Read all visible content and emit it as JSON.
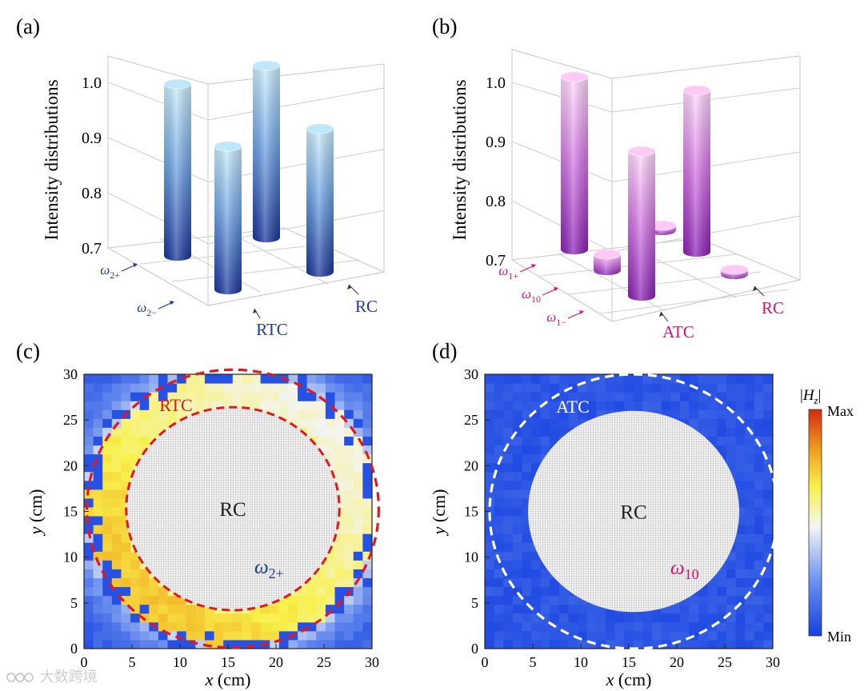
{
  "panels": {
    "a": {
      "label": "(a)"
    },
    "b": {
      "label": "(b)"
    },
    "c": {
      "label": "(c)"
    },
    "d": {
      "label": "(d)"
    }
  },
  "colorbar": {
    "title": "|H_z|",
    "max_label": "Max",
    "min_label": "Min",
    "colors": [
      "#1540e0",
      "#6f93ef",
      "#f4f4f4",
      "#f8f14a",
      "#f09a1c",
      "#d62a10"
    ]
  },
  "watermark": {
    "text": "大数跨境"
  },
  "colors": {
    "blue_top": "#cfeefc",
    "blue_bottom": "#18349a",
    "pink_top": "#ffd9fb",
    "pink_bottom": "#8a1fb5",
    "dash_red": "#dd1a22",
    "label_blue": "#223a90",
    "label_pink": "#d4146e"
  },
  "chart_data": [
    {
      "panel": "a",
      "type": "bar",
      "zlabel": "Intensity distributions",
      "zlim": [
        0.7,
        1.0
      ],
      "zticks": [
        "0.7",
        "0.8",
        "0.9",
        "1.0"
      ],
      "rows": [
        "ω2+",
        "ω2−"
      ],
      "columns": [
        "RTC",
        "RC"
      ],
      "color_scheme": "blue",
      "bars": [
        {
          "row": "ω2+",
          "column": "RTC",
          "value": 1.0
        },
        {
          "row": "ω2+",
          "column": "RC",
          "value": 1.0
        },
        {
          "row": "ω2−",
          "column": "RTC",
          "value": 0.95
        },
        {
          "row": "ω2−",
          "column": "RC",
          "value": 0.95
        }
      ],
      "axis_annotations": {
        "row_labels": [
          {
            "main": "ω",
            "sub": "2+"
          },
          {
            "main": "ω",
            "sub": "2−"
          }
        ],
        "column_labels": [
          "RTC",
          "RC"
        ]
      }
    },
    {
      "panel": "b",
      "type": "bar",
      "zlabel": "Intensity distributions",
      "zlim": [
        0.7,
        1.0
      ],
      "zticks": [
        "0.7",
        "0.8",
        "0.9",
        "1.0"
      ],
      "rows": [
        "ω1+",
        "ω10",
        "ω1−"
      ],
      "columns": [
        "ATC",
        "RC"
      ],
      "color_scheme": "pink",
      "bars": [
        {
          "row": "ω1+",
          "column": "ATC",
          "value": 1.0
        },
        {
          "row": "ω1+",
          "column": "RC",
          "value": 0.98
        },
        {
          "row": "ω10",
          "column": "ATC",
          "value": 0.72
        },
        {
          "row": "ω10",
          "column": "RC",
          "value": 0.7
        },
        {
          "row": "ω1−",
          "column": "ATC",
          "value": 0.95
        },
        {
          "row": "ω1−",
          "column": "RC",
          "value": 0.7
        }
      ],
      "axis_annotations": {
        "row_labels": [
          {
            "main": "ω",
            "sub": "1+"
          },
          {
            "main": "ω",
            "sub": "10"
          },
          {
            "main": "ω",
            "sub": "1−"
          }
        ],
        "column_labels": [
          "ATC",
          "RC"
        ]
      }
    },
    {
      "panel": "c",
      "type": "heatmap",
      "xlabel": "x (cm)",
      "ylabel": "y (cm)",
      "xlim": [
        0,
        30
      ],
      "ylim": [
        0,
        30
      ],
      "xticks": [
        "0",
        "5",
        "10",
        "15",
        "20",
        "25",
        "30"
      ],
      "yticks": [
        "0",
        "5",
        "10",
        "15",
        "20",
        "25",
        "30"
      ],
      "center": [
        15.5,
        15.3
      ],
      "inner_radius": 11.1,
      "outer_radius": 15.2,
      "field_profile": "strong field localized in RTC ring, maximum at lower-left",
      "annotations": {
        "inner_label": "RC",
        "ring_label": "RTC",
        "freq_main": "ω",
        "freq_sub": "2+"
      }
    },
    {
      "panel": "d",
      "type": "heatmap",
      "xlabel": "x (cm)",
      "ylabel": "y (cm)",
      "xlim": [
        0,
        30
      ],
      "ylim": [
        0,
        30
      ],
      "xticks": [
        "0",
        "5",
        "10",
        "15",
        "20",
        "25",
        "30"
      ],
      "yticks": [
        "0",
        "5",
        "10",
        "15",
        "20",
        "25",
        "30"
      ],
      "center": [
        15.5,
        15.0
      ],
      "inner_radius": 11.0,
      "outer_radius": 15.0,
      "field_profile": "uniformly low field everywhere",
      "annotations": {
        "inner_label": "RC",
        "ring_label": "ATC",
        "freq_main": "ω",
        "freq_sub": "10"
      }
    }
  ]
}
